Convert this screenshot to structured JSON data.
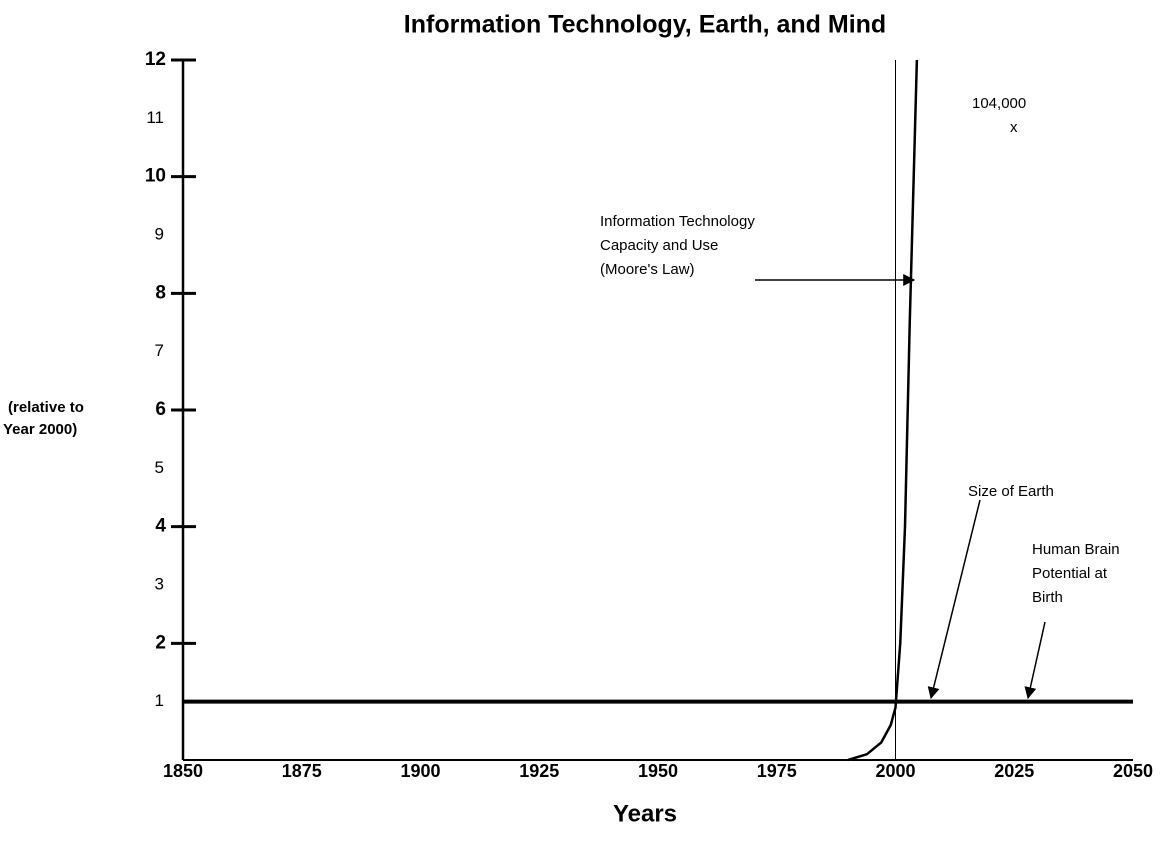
{
  "chart_data": {
    "type": "line",
    "title": "Information Technology, Earth, and Mind",
    "xlabel": "Years",
    "ylabel": [
      "(relative to",
      "Year 2000)"
    ],
    "xlim": [
      1850,
      2050
    ],
    "xticks": [
      1850,
      1875,
      1900,
      1925,
      1950,
      1975,
      2000,
      2025,
      2050
    ],
    "ylim": [
      0,
      12
    ],
    "yticks": [
      1,
      2,
      3,
      4,
      5,
      6,
      7,
      8,
      9,
      10,
      11,
      12
    ],
    "vlines": [
      2000
    ],
    "series": [
      {
        "color": "#000000",
        "x": [
          1990,
          1994,
          1997,
          1999,
          2000,
          2001,
          2002,
          2003,
          2004.5
        ],
        "values": [
          0,
          0.1,
          0.3,
          0.6,
          0.9,
          2,
          4,
          7.5,
          12
        ]
      },
      {
        "color": "#000000",
        "x": [
          1850,
          2050
        ],
        "values": [
          1,
          1
        ]
      }
    ],
    "annotations": [
      {
        "lines": [
          "Information Technology",
          "Capacity and Use",
          "(Moore's Law)"
        ]
      },
      {
        "lines": [
          "104,000",
          "x"
        ]
      },
      {
        "lines": [
          "Size of Earth"
        ]
      },
      {
        "lines": [
          "Human Brain",
          "Potential at",
          "Birth"
        ]
      }
    ]
  }
}
